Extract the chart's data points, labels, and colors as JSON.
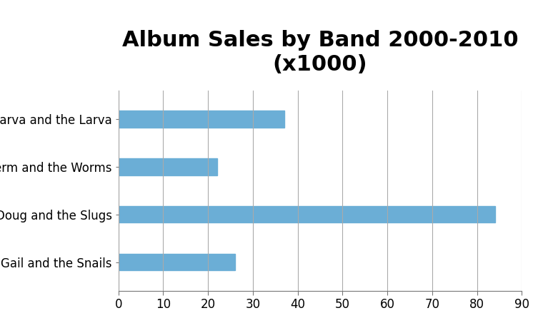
{
  "title": "Album Sales by Band 2000-2010\n(x1000)",
  "categories": [
    "Gail and the Snails",
    "Doug and the Slugs",
    "Sherm and the Worms",
    "Marva and the Larva"
  ],
  "values": [
    26,
    84,
    22,
    37
  ],
  "bar_color": "#6baed6",
  "xlim": [
    0,
    90
  ],
  "xticks": [
    0,
    10,
    20,
    30,
    40,
    50,
    60,
    70,
    80,
    90
  ],
  "title_fontsize": 22,
  "tick_fontsize": 12,
  "label_fontsize": 12,
  "background_color": "#ffffff",
  "grid_color": "#aaaaaa",
  "bar_height": 0.35
}
